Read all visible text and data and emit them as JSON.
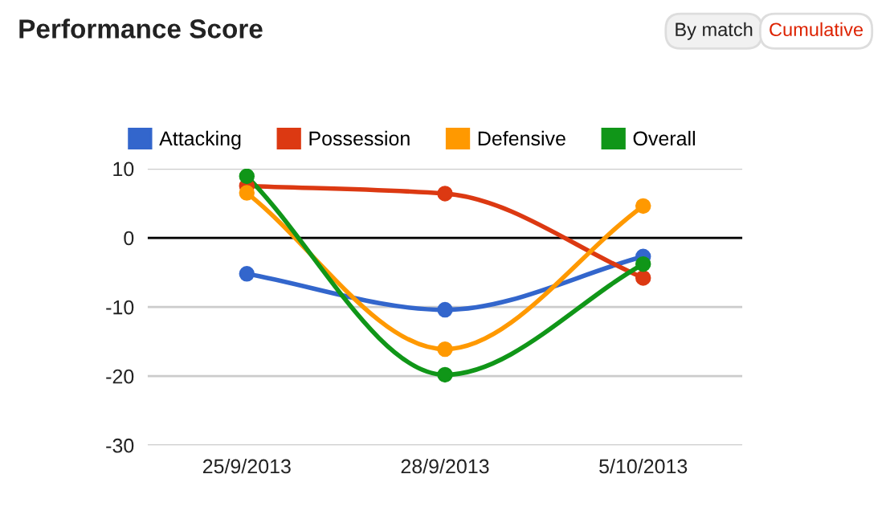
{
  "chart_data": {
    "type": "line",
    "title": "Performance Score",
    "annotations": [
      "By match",
      "Cumulative"
    ],
    "categories": [
      "25/9/2013",
      "28/9/2013",
      "5/10/2013"
    ],
    "series": [
      {
        "name": "Attacking",
        "color": "#3366cc",
        "values": [
          -5.2,
          -10.4,
          -2.7
        ]
      },
      {
        "name": "Possession",
        "color": "#dc3912",
        "values": [
          7.5,
          6.4,
          -5.8
        ]
      },
      {
        "name": "Defensive",
        "color": "#ff9900",
        "values": [
          6.5,
          -16.1,
          4.6
        ]
      },
      {
        "name": "Overall",
        "color": "#109618",
        "values": [
          8.9,
          -19.8,
          -3.8
        ]
      }
    ],
    "ylim": [
      -30,
      10
    ],
    "yticks": [
      -30,
      -20,
      -10,
      0,
      10
    ],
    "ref_lines": [
      {
        "axis": "y",
        "value": 0,
        "color": "#000000"
      }
    ],
    "grid": "y",
    "legend": "top left",
    "marker": "circle",
    "line_style": "solid"
  }
}
